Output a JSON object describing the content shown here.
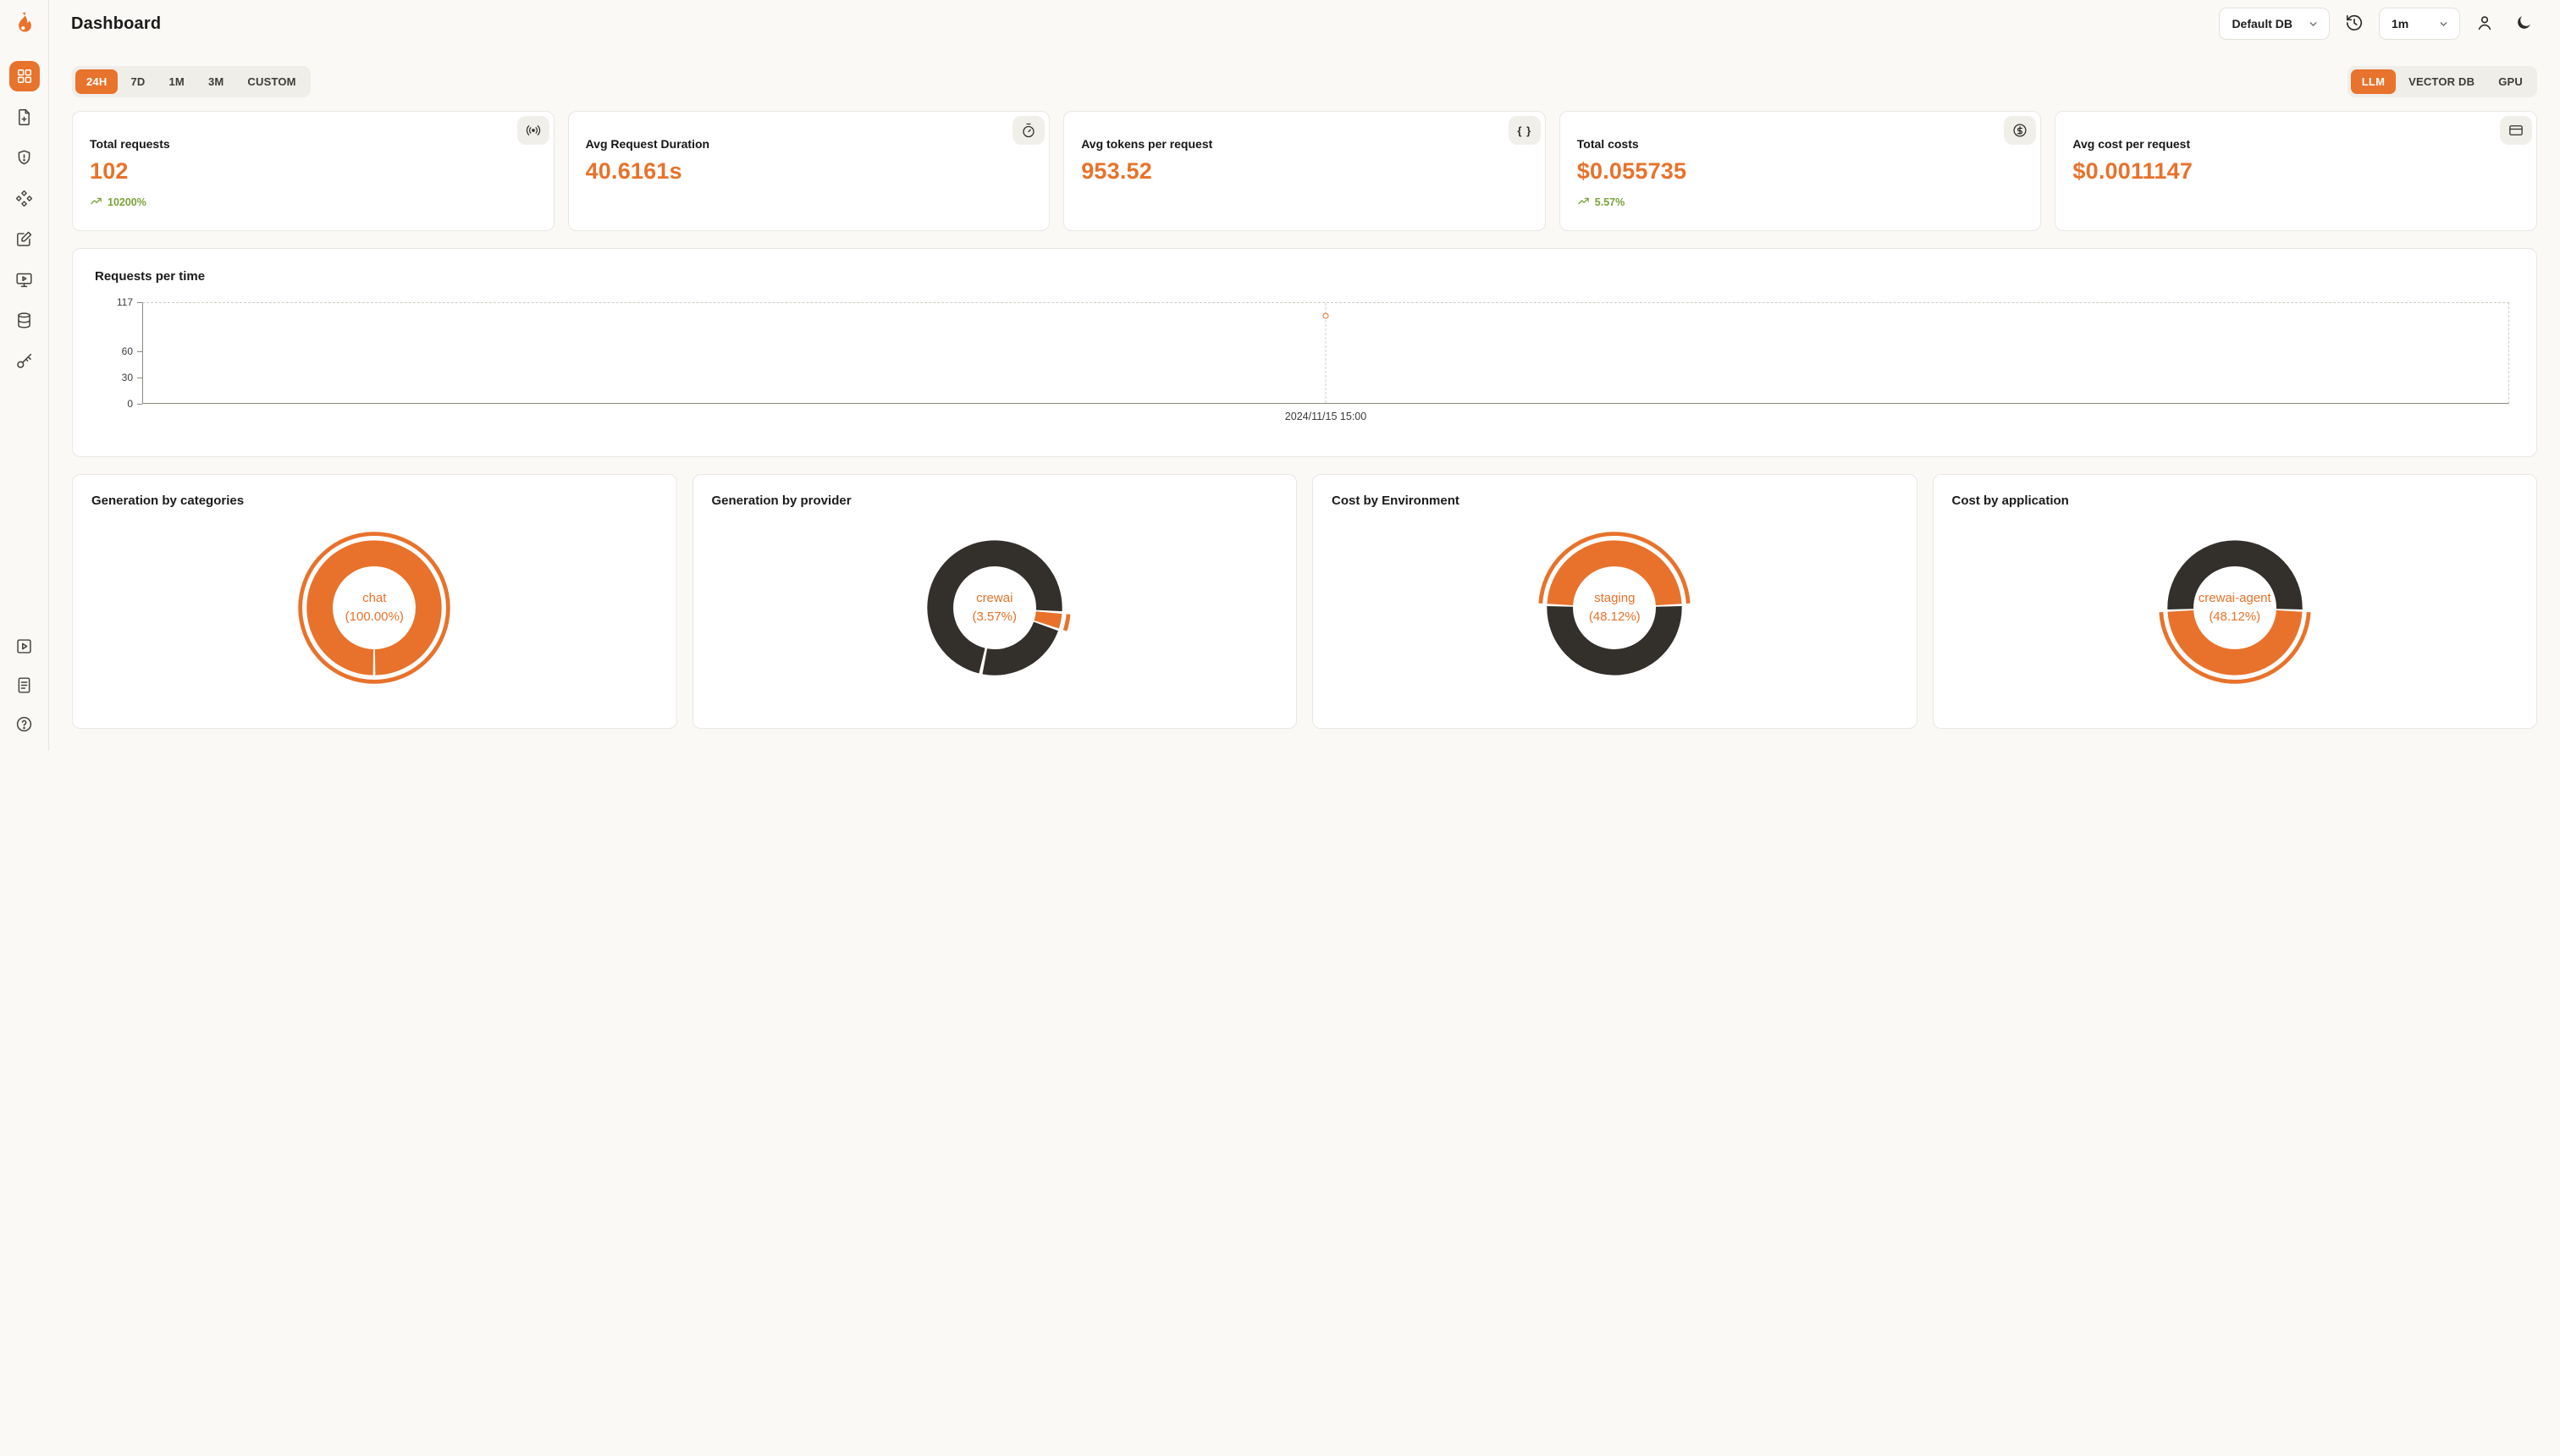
{
  "header": {
    "title": "Dashboard",
    "db_select": "Default DB",
    "interval_select": "1m"
  },
  "filters": {
    "time_ranges": [
      "24H",
      "7D",
      "1M",
      "3M",
      "CUSTOM"
    ],
    "active_time_range": "24H",
    "sources": [
      "LLM",
      "VECTOR DB",
      "GPU"
    ],
    "active_source": "LLM"
  },
  "stats": [
    {
      "label": "Total requests",
      "value": "102",
      "delta": "10200%",
      "icon": "radio-icon"
    },
    {
      "label": "Avg Request Duration",
      "value": "40.6161s",
      "icon": "stopwatch-icon"
    },
    {
      "label": "Avg tokens per request",
      "value": "953.52",
      "icon": "braces-icon"
    },
    {
      "label": "Total costs",
      "value": "$0.055735",
      "delta": "5.57%",
      "icon": "dollar-icon"
    },
    {
      "label": "Avg cost per request",
      "value": "$0.0011147",
      "icon": "credit-card-icon"
    }
  ],
  "colors": {
    "accent": "#E8722B",
    "dark": "#33302B",
    "green": "#7BA23A"
  },
  "chart_data": [
    {
      "type": "line",
      "title": "Requests per time",
      "x": [
        "2024/11/15 15:00"
      ],
      "series": [
        {
          "name": "requests",
          "values": [
            102
          ]
        }
      ],
      "y_ticks": [
        0,
        30,
        60,
        117
      ],
      "ylim": [
        0,
        117
      ],
      "point_x_fraction": 0.5,
      "grid": "dashed-frame",
      "legend": "none"
    },
    {
      "type": "pie",
      "title": "Generation by categories",
      "center_label": "chat",
      "center_pct": "(100.00%)",
      "slices": [
        {
          "name": "chat",
          "pct": 100,
          "color": "accent"
        }
      ]
    },
    {
      "type": "pie",
      "title": "Generation by provider",
      "center_label": "crewai",
      "center_pct": "(3.57%)",
      "slices": [
        {
          "name": "crewai",
          "pct": 3.57,
          "color": "accent"
        },
        {
          "name": "other",
          "pct": 96.43,
          "color": "dark"
        }
      ]
    },
    {
      "type": "pie",
      "title": "Cost by Environment",
      "center_label": "staging",
      "center_pct": "(48.12%)",
      "slices": [
        {
          "name": "staging",
          "pct": 48.12,
          "color": "accent"
        },
        {
          "name": "other",
          "pct": 51.88,
          "color": "dark"
        }
      ]
    },
    {
      "type": "pie",
      "title": "Cost by application",
      "center_label": "crewai-agent",
      "center_pct": "(48.12%)",
      "slices": [
        {
          "name": "crewai-agent",
          "pct": 48.12,
          "color": "accent"
        },
        {
          "name": "other",
          "pct": 51.88,
          "color": "dark"
        }
      ]
    }
  ]
}
